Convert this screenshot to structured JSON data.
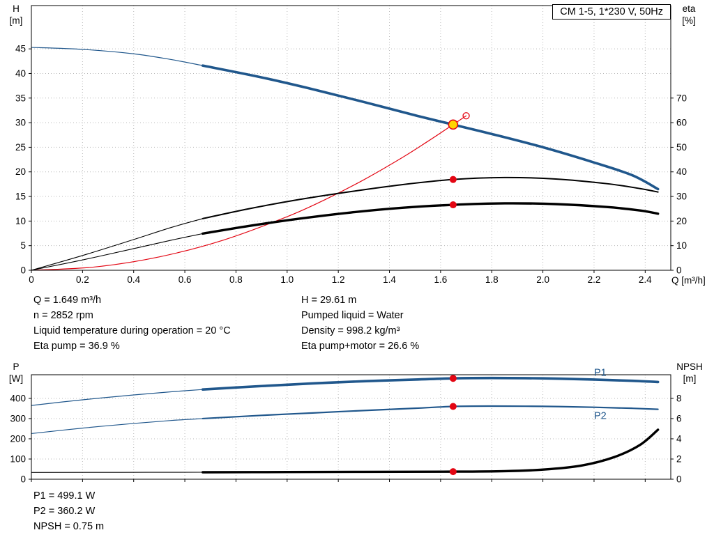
{
  "colors": {
    "curve_blue": "#20578c",
    "curve_red": "#e30613",
    "curve_black": "#000000",
    "duty_yellow": "#ffd400",
    "grid_gray": "#b8b8b8"
  },
  "info": {
    "rows": [
      {
        "left": "Q = 1.649 m³/h",
        "right": "H = 29.61 m"
      },
      {
        "left": "n = 2852 rpm",
        "right": "Pumped liquid = Water"
      },
      {
        "left": "Liquid temperature during operation = 20 °C",
        "right": "Density = 998.2 kg/m³"
      },
      {
        "left": "Eta pump = 36.9 %",
        "right": "Eta pump+motor = 26.6 %"
      }
    ],
    "bottom": [
      "P1 = 499.1 W",
      "P2 = 360.2 W",
      "NPSH = 0.75 m"
    ]
  },
  "chart_data": [
    {
      "type": "line",
      "title": "CM 1-5, 1*230 V, 50Hz",
      "x": {
        "label": "Q [m³/h]",
        "min": 0,
        "max": 2.5,
        "show_labels": true,
        "ticks": [
          "0",
          "0.2",
          "0.4",
          "0.6",
          "0.8",
          "1.0",
          "1.2",
          "1.4",
          "1.6",
          "1.8",
          "2.0",
          "2.2",
          "2.4"
        ]
      },
      "y_left": {
        "name": "H",
        "unit": "[m]",
        "min": 0,
        "max": 53.8,
        "ticks": [
          0,
          5,
          10,
          15,
          20,
          25,
          30,
          35,
          40,
          45
        ]
      },
      "y_right": {
        "name": "eta",
        "unit": "[%]",
        "min": 0,
        "max": 107.6,
        "ticks": [
          0,
          10,
          20,
          30,
          40,
          50,
          60,
          70
        ]
      },
      "series": [
        {
          "name": "head-curve",
          "axis": "left",
          "color": "#20578c",
          "segments": [
            {
              "width": 1.2,
              "points": [
                [
                  0,
                  45.3
                ],
                [
                  0.2,
                  44.9
                ],
                [
                  0.4,
                  44.0
                ],
                [
                  0.55,
                  42.8
                ],
                [
                  0.67,
                  41.6
                ]
              ]
            },
            {
              "width": 3.6,
              "points": [
                [
                  0.67,
                  41.6
                ],
                [
                  0.9,
                  39.2
                ],
                [
                  1.1,
                  36.8
                ],
                [
                  1.3,
                  34.2
                ],
                [
                  1.5,
                  31.5
                ],
                [
                  1.649,
                  29.61
                ],
                [
                  1.8,
                  27.7
                ],
                [
                  2.0,
                  25.0
                ],
                [
                  2.2,
                  21.9
                ],
                [
                  2.35,
                  19.3
                ],
                [
                  2.45,
                  16.5
                ]
              ]
            }
          ]
        },
        {
          "name": "system-curve",
          "axis": "left",
          "color": "#e30613",
          "segments": [
            {
              "width": 1.2,
              "points": [
                [
                  0,
                  0
                ],
                [
                  0.25,
                  0.68
                ],
                [
                  0.5,
                  2.72
                ],
                [
                  0.75,
                  6.12
                ],
                [
                  1.0,
                  10.89
                ],
                [
                  1.15,
                  14.4
                ],
                [
                  1.3,
                  18.4
                ],
                [
                  1.45,
                  22.9
                ],
                [
                  1.55,
                  26.2
                ],
                [
                  1.649,
                  29.61
                ],
                [
                  1.7,
                  31.4
                ]
              ]
            }
          ]
        },
        {
          "name": "eta-pump-curve",
          "axis": "right",
          "color": "#000000",
          "segments": [
            {
              "width": 1.1,
              "points": [
                [
                  0,
                  0
                ],
                [
                  0.2,
                  6
                ],
                [
                  0.4,
                  12.5
                ],
                [
                  0.55,
                  17.5
                ],
                [
                  0.67,
                  21
                ]
              ]
            },
            {
              "width": 2.0,
              "points": [
                [
                  0.67,
                  21
                ],
                [
                  0.85,
                  25
                ],
                [
                  1.05,
                  28.8
                ],
                [
                  1.25,
                  32
                ],
                [
                  1.45,
                  34.8
                ],
                [
                  1.649,
                  36.9
                ],
                [
                  1.85,
                  37.7
                ],
                [
                  2.05,
                  37.1
                ],
                [
                  2.25,
                  35.2
                ],
                [
                  2.38,
                  33.2
                ],
                [
                  2.45,
                  31.8
                ]
              ]
            }
          ]
        },
        {
          "name": "eta-pump-motor-curve",
          "axis": "right",
          "color": "#000000",
          "segments": [
            {
              "width": 1.1,
              "points": [
                [
                  0,
                  0
                ],
                [
                  0.2,
                  4.2
                ],
                [
                  0.4,
                  8.8
                ],
                [
                  0.55,
                  12.3
                ],
                [
                  0.67,
                  14.9
                ]
              ]
            },
            {
              "width": 3.4,
              "points": [
                [
                  0.67,
                  14.9
                ],
                [
                  0.85,
                  18
                ],
                [
                  1.05,
                  21
                ],
                [
                  1.25,
                  23.5
                ],
                [
                  1.45,
                  25.4
                ],
                [
                  1.649,
                  26.6
                ],
                [
                  1.85,
                  27.2
                ],
                [
                  2.05,
                  26.9
                ],
                [
                  2.25,
                  25.7
                ],
                [
                  2.38,
                  24.3
                ],
                [
                  2.45,
                  23
                ]
              ]
            }
          ]
        }
      ],
      "markers": [
        {
          "type": "open",
          "q": 1.7,
          "v": 31.4,
          "axis": "left"
        },
        {
          "type": "duty",
          "q": 1.649,
          "v": 29.61,
          "axis": "left"
        },
        {
          "type": "dot",
          "q": 1.649,
          "v": 36.9,
          "axis": "right"
        },
        {
          "type": "dot",
          "q": 1.649,
          "v": 26.6,
          "axis": "right"
        }
      ],
      "labels": []
    },
    {
      "type": "line",
      "title": "",
      "x": {
        "label": "",
        "min": 0,
        "max": 2.5,
        "show_labels": false,
        "ticks": [
          "0",
          "0.2",
          "0.4",
          "0.6",
          "0.8",
          "1.0",
          "1.2",
          "1.4",
          "1.6",
          "1.8",
          "2.0",
          "2.2",
          "2.4"
        ]
      },
      "y_left": {
        "name": "P",
        "unit": "[W]",
        "min": 0,
        "max": 517,
        "ticks": [
          0,
          100,
          200,
          300,
          400
        ]
      },
      "y_right": {
        "name": "NPSH",
        "unit": "[m]",
        "min": 0,
        "max": 10.34,
        "ticks": [
          0,
          2,
          4,
          6,
          8
        ]
      },
      "series": [
        {
          "name": "p1-power-curve",
          "axis": "left",
          "color": "#20578c",
          "segments": [
            {
              "width": 1.2,
              "points": [
                [
                  0,
                  365
                ],
                [
                  0.2,
                  393
                ],
                [
                  0.4,
                  417
                ],
                [
                  0.55,
                  433
                ],
                [
                  0.67,
                  444
                ]
              ]
            },
            {
              "width": 3.6,
              "points": [
                [
                  0.67,
                  444
                ],
                [
                  0.9,
                  461
                ],
                [
                  1.1,
                  474
                ],
                [
                  1.3,
                  485
                ],
                [
                  1.5,
                  493
                ],
                [
                  1.649,
                  499.1
                ],
                [
                  1.8,
                  501
                ],
                [
                  2.0,
                  499
                ],
                [
                  2.2,
                  493
                ],
                [
                  2.35,
                  487
                ],
                [
                  2.45,
                  481
                ]
              ]
            }
          ]
        },
        {
          "name": "p2-power-curve",
          "axis": "left",
          "color": "#20578c",
          "segments": [
            {
              "width": 1.2,
              "points": [
                [
                  0,
                  226
                ],
                [
                  0.2,
                  253
                ],
                [
                  0.4,
                  276
                ],
                [
                  0.55,
                  291
                ],
                [
                  0.67,
                  300
                ]
              ]
            },
            {
              "width": 2.2,
              "points": [
                [
                  0.67,
                  300
                ],
                [
                  0.9,
                  316
                ],
                [
                  1.1,
                  328
                ],
                [
                  1.3,
                  340
                ],
                [
                  1.5,
                  351
                ],
                [
                  1.649,
                  360.2
                ],
                [
                  1.8,
                  362
                ],
                [
                  2.0,
                  360.5
                ],
                [
                  2.2,
                  356
                ],
                [
                  2.35,
                  351
                ],
                [
                  2.45,
                  346
                ]
              ]
            }
          ]
        },
        {
          "name": "npsh-curve",
          "axis": "right",
          "color": "#000000",
          "segments": [
            {
              "width": 1.1,
              "points": [
                [
                  0,
                  0.67
                ],
                [
                  0.35,
                  0.68
                ],
                [
                  0.67,
                  0.69
                ]
              ]
            },
            {
              "width": 3.4,
              "points": [
                [
                  0.67,
                  0.69
                ],
                [
                  1.0,
                  0.71
                ],
                [
                  1.3,
                  0.73
                ],
                [
                  1.649,
                  0.75
                ],
                [
                  1.85,
                  0.8
                ],
                [
                  2.0,
                  0.95
                ],
                [
                  2.15,
                  1.35
                ],
                [
                  2.28,
                  2.2
                ],
                [
                  2.38,
                  3.4
                ],
                [
                  2.45,
                  4.9
                ]
              ]
            }
          ]
        }
      ],
      "markers": [
        {
          "type": "dot",
          "q": 1.649,
          "v": 499.1,
          "axis": "left"
        },
        {
          "type": "dot",
          "q": 1.649,
          "v": 360.2,
          "axis": "left"
        },
        {
          "type": "dot",
          "q": 1.649,
          "v": 0.75,
          "axis": "right"
        }
      ],
      "labels": [
        {
          "name": "p1-series-label",
          "text": "P1",
          "q": 2.2,
          "v": 512,
          "axis": "left",
          "color": "#20578c"
        },
        {
          "name": "p2-series-label",
          "text": "P2",
          "q": 2.2,
          "v": 298,
          "axis": "left",
          "color": "#20578c"
        }
      ]
    }
  ]
}
